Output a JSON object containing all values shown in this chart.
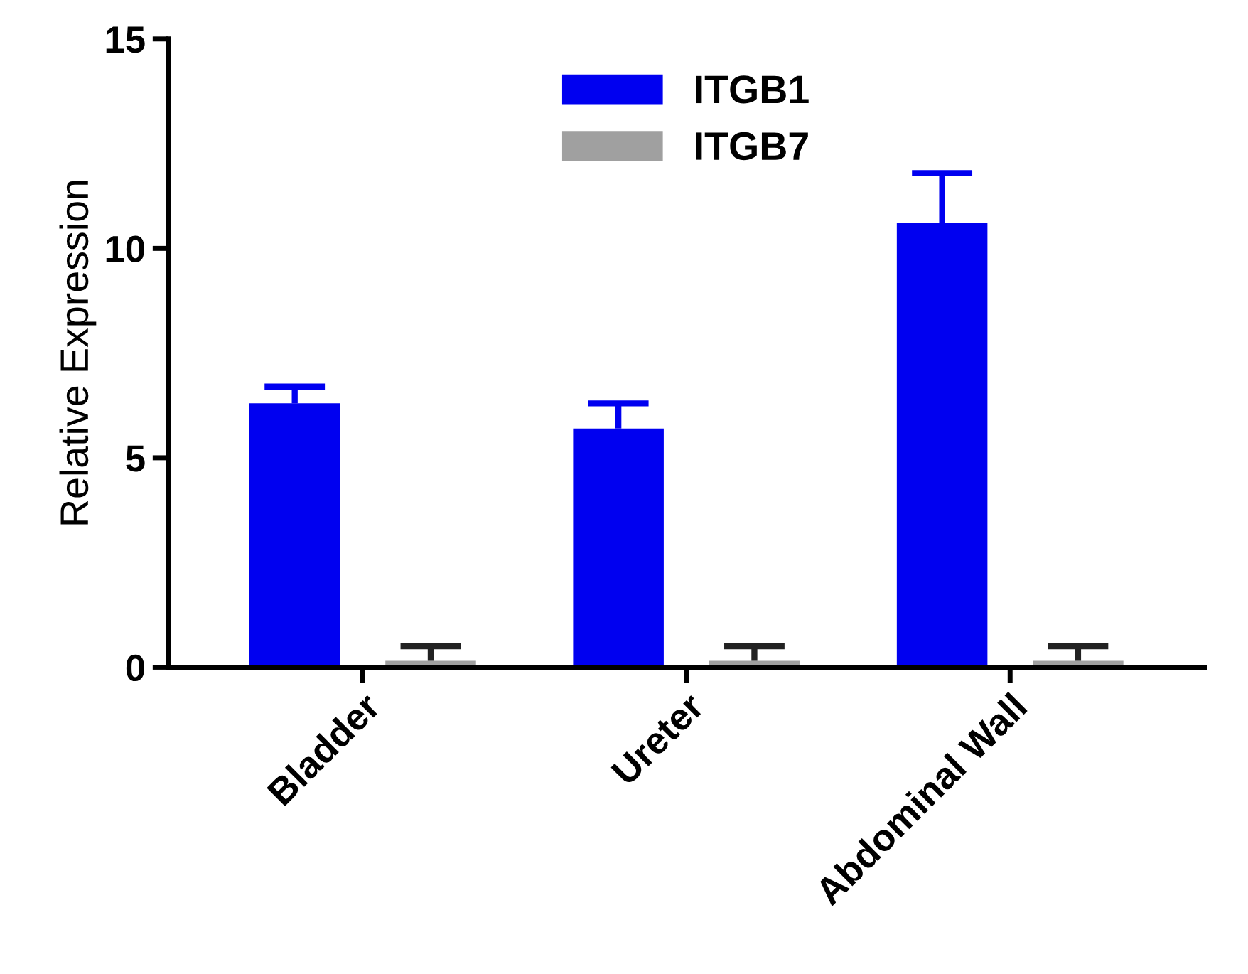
{
  "chart_data": {
    "type": "bar",
    "ylabel": "Relative Expression",
    "categories": [
      "Bladder",
      "Ureter",
      "Abdominal Wall"
    ],
    "series": [
      {
        "name": "ITGB1",
        "color": "#0000f0",
        "values": [
          6.3,
          5.7,
          10.6
        ],
        "errors": [
          [
            6.3,
            6.7
          ],
          [
            5.7,
            6.3
          ],
          [
            10.6,
            11.8
          ]
        ]
      },
      {
        "name": "ITGB7",
        "color": "#a0a0a0",
        "values": [
          0.15,
          0.15,
          0.15
        ],
        "errors": [
          [
            0.15,
            0.5
          ],
          [
            0.15,
            0.5
          ],
          [
            0.15,
            0.5
          ]
        ]
      }
    ],
    "ylim": [
      0,
      15
    ],
    "yticks": [
      0,
      5,
      10,
      15
    ],
    "grid": false,
    "legend": "top"
  }
}
